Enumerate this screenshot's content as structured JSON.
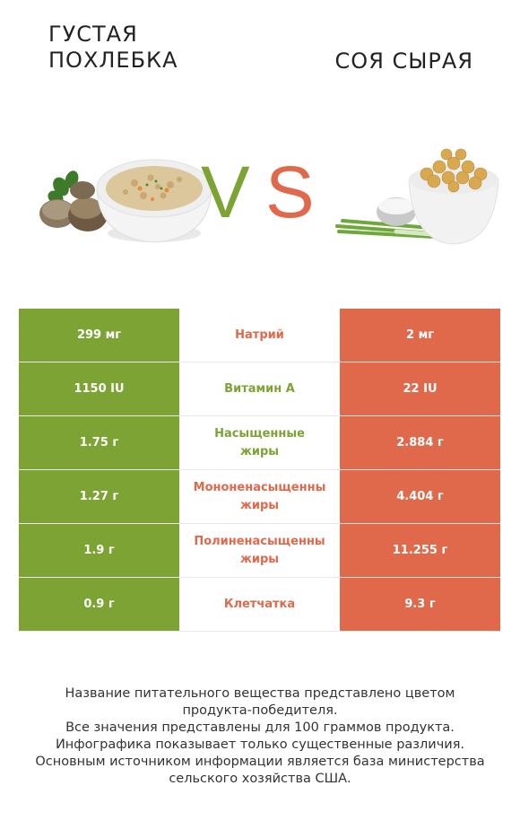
{
  "header": {
    "left_title": "ГУСТАЯ\nПОХЛЕБКА",
    "right_title": "СОЯ СЫРАЯ",
    "vs_v": "V",
    "vs_s": "S"
  },
  "colors": {
    "left": "#7da335",
    "right": "#e0694b"
  },
  "rows": [
    {
      "left": "299 мг",
      "label": "Натрий",
      "right": "2 мг",
      "winner": "right",
      "label2": ""
    },
    {
      "left": "1150 IU",
      "label": "Витамин А",
      "right": "22 IU",
      "winner": "left",
      "label2": ""
    },
    {
      "left": "1.75 г",
      "label": "Насыщенные",
      "label2": "жиры",
      "right": "2.884 г",
      "winner": "left"
    },
    {
      "left": "1.27 г",
      "label": "Мононенасыщенны",
      "label2": "жиры",
      "right": "4.404 г",
      "winner": "right"
    },
    {
      "left": "1.9 г",
      "label": "Полиненасыщенны",
      "label2": "жиры",
      "right": "11.255 г",
      "winner": "right"
    },
    {
      "left": "0.9 г",
      "label": "Клетчатка",
      "right": "9.3 г",
      "winner": "right",
      "label2": ""
    }
  ],
  "footer": [
    "Название питательного вещества представлено цветом",
    "продукта-победителя.",
    "Все значения представлены для 100 граммов продукта.",
    "Инфографика показывает только существенные различия.",
    "Основным источником информации является база министерства",
    "сельского хозяйства США."
  ],
  "images": {
    "left": "soup-bowl-with-mushrooms",
    "right": "soybeans-bowl-with-scallions"
  }
}
